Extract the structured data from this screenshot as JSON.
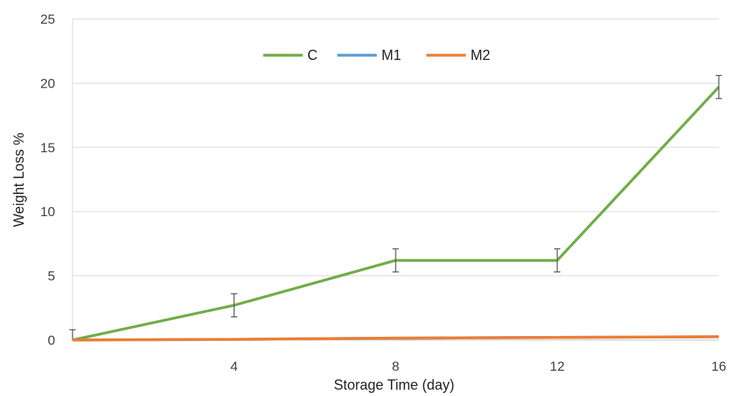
{
  "chart_data": {
    "type": "line",
    "title": "",
    "xlabel": "Storage Time  (day)",
    "ylabel": "Weight Loss %",
    "x": [
      0,
      4,
      8,
      12,
      16
    ],
    "xlim": [
      0,
      16
    ],
    "ylim": [
      0,
      25
    ],
    "x_ticks": [
      "4",
      "8",
      "12",
      "16"
    ],
    "y_ticks": [
      "0",
      "5",
      "10",
      "15",
      "20",
      "25"
    ],
    "grid": "horizontal",
    "legend_position": "top-center",
    "series": [
      {
        "name": "C",
        "color": "#70AD47",
        "values": [
          0,
          2.7,
          6.2,
          6.2,
          19.7
        ],
        "error": [
          0.8,
          0.9,
          0.9,
          0.9,
          0.9
        ]
      },
      {
        "name": "M1",
        "color": "#5B9BD5",
        "values": [
          0,
          0.05,
          0.15,
          0.2,
          0.25
        ],
        "error": [
          0,
          0,
          0,
          0,
          0
        ]
      },
      {
        "name": "M2",
        "color": "#ED7D31",
        "values": [
          0,
          0.05,
          0.15,
          0.2,
          0.25
        ],
        "error": [
          0,
          0,
          0,
          0,
          0
        ]
      }
    ]
  }
}
